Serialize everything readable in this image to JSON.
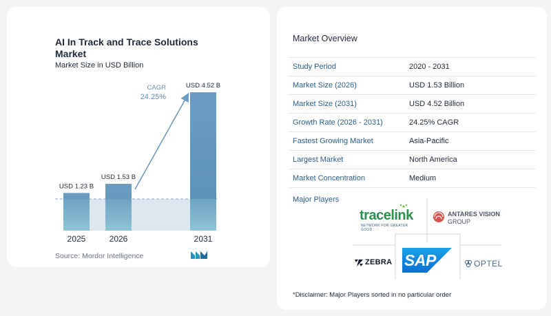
{
  "chart": {
    "title": "AI In Track and Trace Solutions Market",
    "subtitle": "Market Size in USD Billion",
    "source": "Source: Mordor Intelligence",
    "cagr_label": "CAGR",
    "cagr_value": "24.25%"
  },
  "chart_data": {
    "type": "bar",
    "title": "AI In Track and Trace Solutions Market",
    "subtitle": "Market Size in USD Billion",
    "categories": [
      "2025",
      "2026",
      "2031"
    ],
    "values": [
      1.23,
      1.53,
      4.52
    ],
    "data_labels": [
      "USD 1.23 B",
      "USD 1.53 B",
      "USD 4.52 B"
    ],
    "ylim": [
      0,
      4.52
    ],
    "grid": false,
    "colors": {
      "bar_top": "#6c9cc1",
      "bar_bottom": "#4f86ae",
      "baseline_fill": "#dde7f0",
      "arrow": "#6c9cc1",
      "cagr_text": "#5a8cb4"
    }
  },
  "overview": {
    "title": "Market Overview",
    "rows": [
      {
        "label": "Study Period",
        "value": "2020 - 2031"
      },
      {
        "label": "Market Size (2026)",
        "value": "USD 1.53 Billion"
      },
      {
        "label": "Market Size (2031)",
        "value": "USD 4.52 Billion"
      },
      {
        "label": "Growth Rate (2026 - 2031)",
        "value": "24.25% CAGR"
      },
      {
        "label": "Fastest Growing Market",
        "value": "Asia-Pacific"
      },
      {
        "label": "Largest Market",
        "value": "North America"
      },
      {
        "label": "Market Concentration",
        "value": "Medium"
      }
    ]
  },
  "players": {
    "title": "Major Players",
    "tracelink": {
      "name": "tracelink",
      "tagline": "NETWORK FOR GREATER GOOD"
    },
    "antares": {
      "line1": "ANTARES VISION",
      "line2": "GROUP"
    },
    "zebra": "ZEBRA",
    "sap": "SAP",
    "optel": "OPTEL"
  },
  "disclaimer": "*Disclaimer: Major Players sorted in no particular order"
}
